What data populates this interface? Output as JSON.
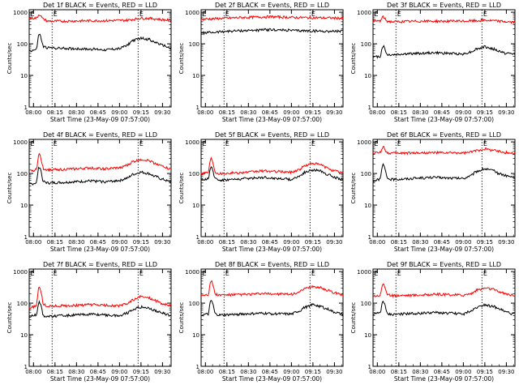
{
  "figure": {
    "colors": {
      "events": "#000000",
      "lld": "#ff0000",
      "axis": "#000000"
    },
    "ylabel": "Counts/sec",
    "xlabel": "Start Time (23-May-09 07:57:00)",
    "x_ticks": [
      "08:00",
      "08:15",
      "08:30",
      "08:45",
      "09:00",
      "09:15",
      "09:30"
    ],
    "y_ticks": [
      "1",
      "10",
      "100",
      "1000"
    ],
    "marker_label": "E"
  },
  "chart_data": [
    {
      "type": "line",
      "title": "Det 1f BLACK = Events, RED = LLD",
      "xlim": [
        "07:57",
        "09:36"
      ],
      "ylim": [
        1,
        1200
      ],
      "yscale": "log",
      "markers": [
        "08:13",
        "09:13"
      ],
      "series": [
        {
          "key": "events",
          "x": [
            "07:57",
            "08:02",
            "08:04",
            "08:07",
            "08:10",
            "08:20",
            "08:30",
            "08:40",
            "08:50",
            "09:00",
            "09:05",
            "09:10",
            "09:15",
            "09:20",
            "09:25",
            "09:30",
            "09:35"
          ],
          "values": [
            60,
            65,
            200,
            80,
            75,
            72,
            70,
            68,
            65,
            70,
            90,
            130,
            150,
            140,
            110,
            90,
            75
          ]
        },
        {
          "key": "lld",
          "x": [
            "07:57",
            "08:02",
            "08:04",
            "08:07",
            "08:10",
            "08:20",
            "08:30",
            "08:40",
            "08:50",
            "09:00",
            "09:05",
            "09:10",
            "09:15",
            "09:20",
            "09:25",
            "09:30",
            "09:35"
          ],
          "values": [
            650,
            650,
            850,
            600,
            520,
            520,
            530,
            540,
            540,
            550,
            560,
            600,
            650,
            640,
            620,
            580,
            560
          ]
        }
      ]
    },
    {
      "type": "line",
      "title": "Det 2f BLACK = Events, RED = LLD",
      "xlim": [
        "07:57",
        "09:36"
      ],
      "ylim": [
        1,
        1200
      ],
      "yscale": "log",
      "markers": [
        "08:13",
        "09:13"
      ],
      "series": [
        {
          "key": "events",
          "x": [
            "07:57",
            "08:05",
            "08:15",
            "08:25",
            "08:35",
            "08:45",
            "08:55",
            "09:05",
            "09:15",
            "09:25",
            "09:35"
          ],
          "values": [
            220,
            230,
            250,
            260,
            270,
            280,
            270,
            260,
            255,
            250,
            250
          ]
        },
        {
          "key": "lld",
          "x": [
            "07:57",
            "08:05",
            "08:15",
            "08:25",
            "08:35",
            "08:45",
            "08:55",
            "09:05",
            "09:15",
            "09:25",
            "09:35"
          ],
          "values": [
            600,
            620,
            650,
            680,
            700,
            720,
            700,
            680,
            670,
            660,
            650
          ]
        }
      ]
    },
    {
      "type": "line",
      "title": "Det 3f BLACK = Events, RED = LLD",
      "xlim": [
        "07:57",
        "09:36"
      ],
      "ylim": [
        1,
        1200
      ],
      "yscale": "log",
      "markers": [
        "08:13",
        "09:13"
      ],
      "series": [
        {
          "key": "events",
          "x": [
            "07:57",
            "08:02",
            "08:04",
            "08:07",
            "08:10",
            "08:20",
            "08:30",
            "08:40",
            "08:50",
            "09:00",
            "09:05",
            "09:10",
            "09:15",
            "09:20",
            "09:25",
            "09:30",
            "09:35"
          ],
          "values": [
            38,
            40,
            85,
            45,
            45,
            48,
            50,
            52,
            50,
            48,
            55,
            70,
            80,
            70,
            58,
            50,
            48
          ]
        },
        {
          "key": "lld",
          "x": [
            "07:57",
            "08:02",
            "08:04",
            "08:07",
            "08:10",
            "08:20",
            "08:30",
            "08:40",
            "08:50",
            "09:00",
            "09:05",
            "09:10",
            "09:15",
            "09:20",
            "09:25",
            "09:30",
            "09:35"
          ],
          "values": [
            520,
            530,
            700,
            520,
            500,
            510,
            520,
            520,
            520,
            520,
            530,
            540,
            560,
            540,
            520,
            500,
            480
          ]
        }
      ]
    },
    {
      "type": "line",
      "title": "Det 4f BLACK = Events, RED = LLD",
      "xlim": [
        "07:57",
        "09:36"
      ],
      "ylim": [
        1,
        1200
      ],
      "yscale": "log",
      "markers": [
        "08:13",
        "09:13"
      ],
      "series": [
        {
          "key": "events",
          "x": [
            "07:57",
            "08:02",
            "08:04",
            "08:07",
            "08:10",
            "08:20",
            "08:30",
            "08:40",
            "08:50",
            "09:00",
            "09:05",
            "09:10",
            "09:15",
            "09:20",
            "09:25",
            "09:30",
            "09:35"
          ],
          "values": [
            45,
            50,
            160,
            55,
            50,
            52,
            55,
            58,
            55,
            60,
            70,
            95,
            110,
            100,
            80,
            65,
            55
          ]
        },
        {
          "key": "lld",
          "x": [
            "07:57",
            "08:02",
            "08:04",
            "08:07",
            "08:10",
            "08:20",
            "08:30",
            "08:40",
            "08:50",
            "09:00",
            "09:05",
            "09:10",
            "09:15",
            "09:20",
            "09:25",
            "09:30",
            "09:35"
          ],
          "values": [
            120,
            130,
            400,
            140,
            130,
            135,
            140,
            150,
            140,
            150,
            180,
            240,
            280,
            260,
            210,
            170,
            140
          ]
        }
      ]
    },
    {
      "type": "line",
      "title": "Det 5f BLACK = Events, RED = LLD",
      "xlim": [
        "07:57",
        "09:36"
      ],
      "ylim": [
        1,
        1200
      ],
      "yscale": "log",
      "markers": [
        "08:13",
        "09:13"
      ],
      "series": [
        {
          "key": "events",
          "x": [
            "07:57",
            "08:02",
            "08:04",
            "08:07",
            "08:10",
            "08:20",
            "08:30",
            "08:40",
            "08:50",
            "09:00",
            "09:05",
            "09:10",
            "09:15",
            "09:20",
            "09:25",
            "09:30",
            "09:35"
          ],
          "values": [
            60,
            70,
            150,
            70,
            62,
            65,
            70,
            75,
            70,
            65,
            80,
            110,
            130,
            120,
            95,
            75,
            65
          ]
        },
        {
          "key": "lld",
          "x": [
            "07:57",
            "08:02",
            "08:04",
            "08:07",
            "08:10",
            "08:20",
            "08:30",
            "08:40",
            "08:50",
            "09:00",
            "09:05",
            "09:10",
            "09:15",
            "09:20",
            "09:25",
            "09:30",
            "09:35"
          ],
          "values": [
            100,
            110,
            300,
            110,
            100,
            105,
            110,
            120,
            115,
            110,
            130,
            180,
            210,
            190,
            150,
            120,
            110
          ]
        }
      ]
    },
    {
      "type": "line",
      "title": "Det 6f BLACK = Events, RED = LLD",
      "xlim": [
        "07:57",
        "09:36"
      ],
      "ylim": [
        1,
        1200
      ],
      "yscale": "log",
      "markers": [
        "08:13",
        "09:13"
      ],
      "series": [
        {
          "key": "events",
          "x": [
            "07:57",
            "08:02",
            "08:04",
            "08:07",
            "08:10",
            "08:20",
            "08:30",
            "08:40",
            "08:50",
            "09:00",
            "09:05",
            "09:10",
            "09:15",
            "09:20",
            "09:25",
            "09:30",
            "09:35"
          ],
          "values": [
            60,
            65,
            190,
            70,
            65,
            68,
            72,
            75,
            72,
            70,
            85,
            120,
            140,
            125,
            100,
            85,
            75
          ]
        },
        {
          "key": "lld",
          "x": [
            "07:57",
            "08:02",
            "08:04",
            "08:07",
            "08:10",
            "08:20",
            "08:30",
            "08:40",
            "08:50",
            "09:00",
            "09:05",
            "09:10",
            "09:15",
            "09:20",
            "09:25",
            "09:30",
            "09:35"
          ],
          "values": [
            450,
            460,
            700,
            450,
            440,
            445,
            450,
            455,
            450,
            445,
            470,
            540,
            600,
            560,
            500,
            460,
            440
          ]
        }
      ]
    },
    {
      "type": "line",
      "title": "Det 7f BLACK = Events, RED = LLD",
      "xlim": [
        "07:57",
        "09:36"
      ],
      "ylim": [
        1,
        1200
      ],
      "yscale": "log",
      "markers": [
        "08:13",
        "09:13"
      ],
      "series": [
        {
          "key": "events",
          "x": [
            "07:57",
            "08:02",
            "08:04",
            "08:07",
            "08:10",
            "08:20",
            "08:30",
            "08:40",
            "08:50",
            "09:00",
            "09:05",
            "09:10",
            "09:15",
            "09:20",
            "09:25",
            "09:30",
            "09:35"
          ],
          "values": [
            38,
            42,
            110,
            40,
            38,
            40,
            42,
            45,
            42,
            40,
            48,
            65,
            75,
            70,
            58,
            48,
            42
          ]
        },
        {
          "key": "lld",
          "x": [
            "07:57",
            "08:02",
            "08:04",
            "08:07",
            "08:10",
            "08:20",
            "08:30",
            "08:40",
            "08:50",
            "09:00",
            "09:05",
            "09:10",
            "09:15",
            "09:20",
            "09:25",
            "09:30",
            "09:35"
          ],
          "values": [
            70,
            80,
            320,
            90,
            80,
            82,
            85,
            90,
            85,
            82,
            95,
            130,
            160,
            150,
            120,
            95,
            85
          ]
        }
      ]
    },
    {
      "type": "line",
      "title": "Det 8f BLACK = Events, RED = LLD",
      "xlim": [
        "07:57",
        "09:36"
      ],
      "ylim": [
        1,
        1200
      ],
      "yscale": "log",
      "markers": [
        "08:13",
        "09:13"
      ],
      "series": [
        {
          "key": "events",
          "x": [
            "07:57",
            "08:02",
            "08:04",
            "08:07",
            "08:10",
            "08:20",
            "08:30",
            "08:40",
            "08:50",
            "09:00",
            "09:05",
            "09:10",
            "09:15",
            "09:20",
            "09:25",
            "09:30",
            "09:35"
          ],
          "values": [
            42,
            45,
            120,
            45,
            42,
            44,
            46,
            48,
            46,
            45,
            55,
            75,
            90,
            80,
            65,
            52,
            45
          ]
        },
        {
          "key": "lld",
          "x": [
            "07:57",
            "08:02",
            "08:04",
            "08:07",
            "08:10",
            "08:20",
            "08:30",
            "08:40",
            "08:50",
            "09:00",
            "09:05",
            "09:10",
            "09:15",
            "09:20",
            "09:25",
            "09:30",
            "09:35"
          ],
          "values": [
            180,
            190,
            500,
            190,
            180,
            185,
            190,
            200,
            195,
            190,
            220,
            290,
            340,
            310,
            260,
            210,
            190
          ]
        }
      ]
    },
    {
      "type": "line",
      "title": "Det 9f BLACK = Events, RED = LLD",
      "xlim": [
        "07:57",
        "09:36"
      ],
      "ylim": [
        1,
        1200
      ],
      "yscale": "log",
      "markers": [
        "08:13",
        "09:13"
      ],
      "series": [
        {
          "key": "events",
          "x": [
            "07:57",
            "08:02",
            "08:04",
            "08:07",
            "08:10",
            "08:20",
            "08:30",
            "08:40",
            "08:50",
            "09:00",
            "09:05",
            "09:10",
            "09:15",
            "09:20",
            "09:25",
            "09:30",
            "09:35"
          ],
          "values": [
            45,
            48,
            115,
            45,
            44,
            46,
            48,
            50,
            48,
            46,
            55,
            75,
            90,
            80,
            65,
            52,
            46
          ]
        },
        {
          "key": "lld",
          "x": [
            "07:57",
            "08:02",
            "08:04",
            "08:07",
            "08:10",
            "08:20",
            "08:30",
            "08:40",
            "08:50",
            "09:00",
            "09:05",
            "09:10",
            "09:15",
            "09:20",
            "09:25",
            "09:30",
            "09:35"
          ],
          "values": [
            170,
            175,
            420,
            180,
            175,
            178,
            182,
            190,
            185,
            180,
            200,
            260,
            300,
            280,
            230,
            195,
            180
          ]
        }
      ]
    }
  ]
}
